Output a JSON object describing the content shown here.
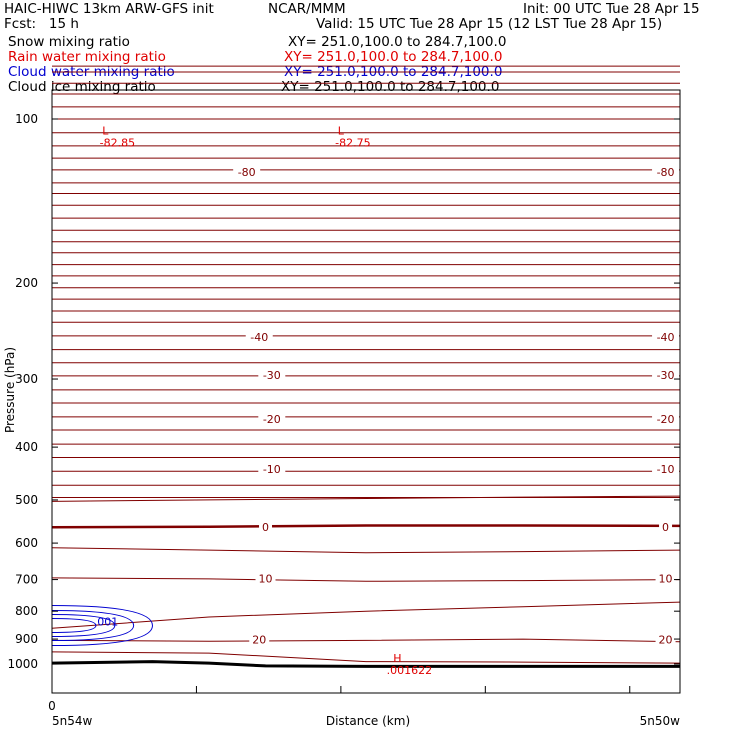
{
  "header": {
    "title_left": "HAIC-HIWC 13km ARW-GFS init",
    "title_center": "NCAR/MMM",
    "init": "Init: 00 UTC Tue 28 Apr 15",
    "fcst": "Fcst:   15 h",
    "valid": "Valid: 15 UTC Tue 28 Apr 15 (12 LST Tue 28 Apr 15)",
    "fields": [
      {
        "name": "Snow mixing ratio",
        "xy": "XY= 251.0,100.0 to 284.7,100.0",
        "color": "#000000"
      },
      {
        "name": "Rain water mixing ratio",
        "xy": "XY= 251.0,100.0 to 284.7,100.0",
        "color": "#e00000"
      },
      {
        "name": "Cloud water mixing ratio",
        "xy": "XY= 251.0,100.0 to 284.7,100.0",
        "color": "#0000d0"
      },
      {
        "name": "Cloud ice mixing ratio",
        "xy": "XY= 251.0,100.0 to 284.7,100.0",
        "color": "#000000"
      }
    ]
  },
  "chart_data": {
    "type": "line",
    "ylabel": "Pressure (hPa)",
    "xlabel": "Distance (km)",
    "x_start_label": "5n54w",
    "x_end_label": "5n50w",
    "x_zero_label": "0",
    "yticks": [
      100,
      200,
      300,
      400,
      500,
      600,
      700,
      800,
      900,
      1000
    ],
    "y_log_scale": true,
    "ylim": [
      1050,
      75
    ],
    "xlim": [
      0,
      1
    ],
    "colors": {
      "temperature": "#800000",
      "ground": "#000000",
      "cloud_water": "#0000d0",
      "extrema": "#e00000"
    },
    "temperature_labels": [
      {
        "text": "-80",
        "x": 0.31,
        "p": 125
      },
      {
        "text": "-80",
        "x": 0.977,
        "p": 125
      },
      {
        "text": "-40",
        "x": 0.33,
        "p": 251
      },
      {
        "text": "-40",
        "x": 0.977,
        "p": 251
      },
      {
        "text": "-30",
        "x": 0.35,
        "p": 295
      },
      {
        "text": "-30",
        "x": 0.977,
        "p": 295
      },
      {
        "text": "-20",
        "x": 0.35,
        "p": 355
      },
      {
        "text": "-20",
        "x": 0.977,
        "p": 355
      },
      {
        "text": "-10",
        "x": 0.35,
        "p": 439
      },
      {
        "text": "-10",
        "x": 0.977,
        "p": 439
      },
      {
        "text": "0",
        "x": 0.34,
        "p": 561
      },
      {
        "text": "0",
        "x": 0.977,
        "p": 561
      },
      {
        "text": "10",
        "x": 0.34,
        "p": 697
      },
      {
        "text": "10",
        "x": 0.977,
        "p": 697
      },
      {
        "text": "20",
        "x": 0.33,
        "p": 902
      },
      {
        "text": "20",
        "x": 0.977,
        "p": 902
      }
    ],
    "extrema": [
      {
        "kind": "L",
        "value": "-82.85",
        "x": 0.085,
        "p": 105
      },
      {
        "kind": "L",
        "value": "-82.75",
        "x": 0.46,
        "p": 105
      },
      {
        "kind": "H",
        "value": ".001622",
        "x": 0.55,
        "p": 975
      }
    ],
    "cloud_water_label": {
      "text": ".001",
      "x": 0.07,
      "p": 835
    },
    "ground_surface": [
      [
        0,
        996
      ],
      [
        0.16,
        990
      ],
      [
        0.25,
        996
      ],
      [
        0.34,
        1008
      ],
      [
        0.5,
        1010
      ],
      [
        1,
        1010
      ]
    ]
  }
}
